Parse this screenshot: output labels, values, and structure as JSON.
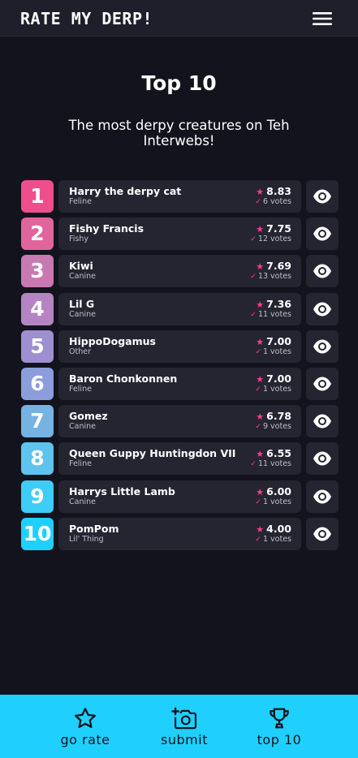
{
  "header": {
    "logo": "RATE MY DERP!",
    "menu_icon": "hamburger-menu-icon"
  },
  "page": {
    "title": "Top 10",
    "subtitle": "The most derpy creatures on Teh Interwebs!"
  },
  "colors": {
    "accent_pink": "#ff3c8a",
    "accent_cyan": "#1fd0ff",
    "background": "#13131d",
    "card": "#252532",
    "rank_gradient": [
      "#ee4f8c",
      "#e0659c",
      "#c979b2",
      "#b485c2",
      "#9d8fd0",
      "#8b9dda",
      "#76b3e3",
      "#5ec3ee",
      "#3dcdf6",
      "#1fd0ff"
    ]
  },
  "rankings": [
    {
      "rank": "1",
      "name": "Harry the derpy cat",
      "species": "Feline",
      "score": "8.83",
      "votes": "6 votes"
    },
    {
      "rank": "2",
      "name": "Fishy Francis",
      "species": "Fishy",
      "score": "7.75",
      "votes": "12 votes"
    },
    {
      "rank": "3",
      "name": "Kiwi",
      "species": "Canine",
      "score": "7.69",
      "votes": "13 votes"
    },
    {
      "rank": "4",
      "name": "Lil G",
      "species": "Canine",
      "score": "7.36",
      "votes": "11 votes"
    },
    {
      "rank": "5",
      "name": "HippoDogamus",
      "species": "Other",
      "score": "7.00",
      "votes": "1 votes"
    },
    {
      "rank": "6",
      "name": "Baron Chonkonnen",
      "species": "Feline",
      "score": "7.00",
      "votes": "1 votes"
    },
    {
      "rank": "7",
      "name": "Gomez",
      "species": "Canine",
      "score": "6.78",
      "votes": "9 votes"
    },
    {
      "rank": "8",
      "name": "Queen Guppy Huntingdon VII",
      "species": "Feline",
      "score": "6.55",
      "votes": "11 votes"
    },
    {
      "rank": "9",
      "name": "Harrys Little Lamb",
      "species": "Canine",
      "score": "6.00",
      "votes": "1 votes"
    },
    {
      "rank": "10",
      "name": "PomPom",
      "species": "Lil' Thing",
      "score": "4.00",
      "votes": "1 votes"
    }
  ],
  "nav": {
    "items": [
      {
        "label": "go rate",
        "icon": "star-icon"
      },
      {
        "label": "submit",
        "icon": "camera-plus-icon"
      },
      {
        "label": "top 10",
        "icon": "trophy-icon"
      }
    ]
  }
}
